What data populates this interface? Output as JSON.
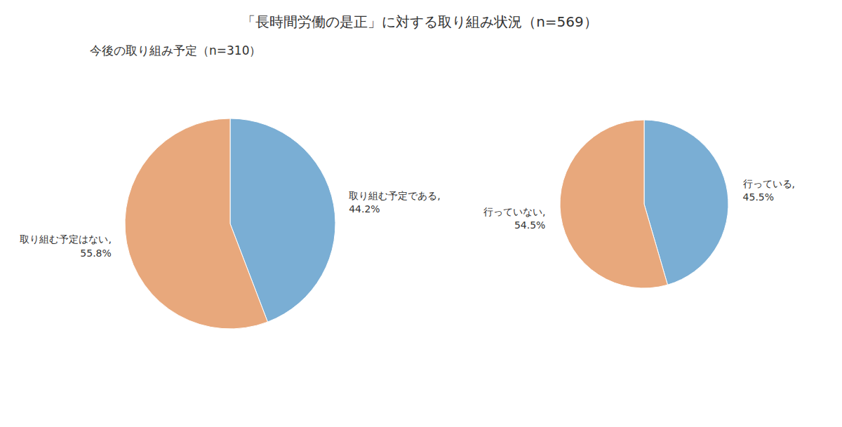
{
  "chart_data": [
    {
      "type": "pie",
      "title": "「長時間労働の是正」に対する取り組み状況（n=569）",
      "categories": [
        "行っている,",
        "行っていない,"
      ],
      "values": [
        45.5,
        54.5
      ],
      "value_labels": [
        "45.5%",
        "54.5%"
      ],
      "colors": [
        "#7aaed4",
        "#e8a87c"
      ],
      "data_labels": true
    },
    {
      "type": "pie",
      "title": "今後の取り組み予定（n=310）",
      "categories": [
        "取り組む予定である,",
        "取り組む予定はない,"
      ],
      "values": [
        44.2,
        55.8
      ],
      "value_labels": [
        "44.2%",
        "55.8%"
      ],
      "colors": [
        "#7aaed4",
        "#e8a87c"
      ],
      "data_labels": true
    }
  ]
}
